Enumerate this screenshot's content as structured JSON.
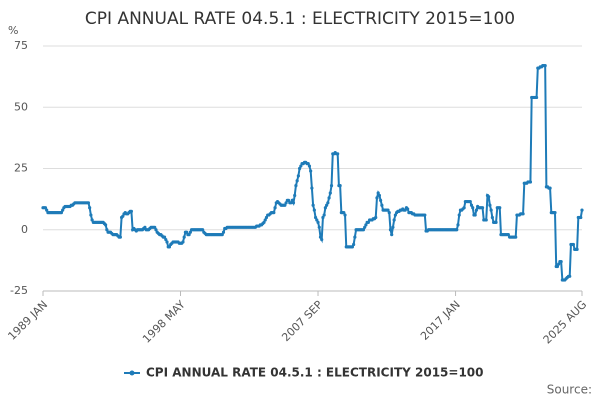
{
  "chart_data": {
    "type": "line",
    "title": "CPI ANNUAL RATE 04.5.1 : ELECTRICITY 2015=100",
    "y_label": "%",
    "source": "Source:",
    "ylim": [
      -25,
      75
    ],
    "yticks": [
      -25,
      0,
      25,
      50,
      75
    ],
    "grid": true,
    "legend": "bottom",
    "categories": [
      "1989 JAN",
      null,
      null,
      null,
      null,
      null,
      null,
      null,
      null,
      null,
      null,
      null,
      null,
      null,
      null,
      null,
      null,
      null,
      null,
      null,
      null,
      null,
      null,
      null,
      null,
      null,
      null,
      null,
      null,
      null,
      null,
      null,
      null,
      null,
      null,
      null,
      null,
      null,
      null,
      null,
      null,
      null,
      null,
      null,
      null,
      null,
      null,
      null,
      null,
      null,
      null,
      null,
      null,
      null,
      null,
      null,
      null,
      null,
      null,
      null,
      null,
      null,
      null,
      null,
      null,
      null,
      null,
      null,
      null,
      null,
      null,
      null,
      null,
      null,
      null,
      null,
      null,
      null,
      null,
      null,
      null,
      null,
      null,
      null,
      null,
      null,
      null,
      null,
      null,
      null,
      null,
      null,
      null,
      null,
      null,
      null,
      null,
      null,
      null,
      null,
      null,
      null,
      null,
      null,
      null,
      null,
      null,
      null,
      null,
      null,
      null,
      null,
      "1998 MAY",
      null,
      null,
      null,
      null,
      null,
      null,
      null,
      null,
      null,
      null,
      null,
      null,
      null,
      null,
      null,
      null,
      null,
      null,
      null,
      null,
      null,
      null,
      null,
      null,
      null,
      null,
      null,
      null,
      null,
      null,
      null,
      null,
      null,
      null,
      null,
      null,
      null,
      null,
      null,
      null,
      null,
      null,
      null,
      null,
      null,
      null,
      null,
      null,
      null,
      null,
      null,
      null,
      null,
      null,
      null,
      null,
      null,
      null,
      null,
      null,
      null,
      null,
      null,
      null,
      null,
      null,
      null,
      null,
      null,
      null,
      null,
      null,
      null,
      null,
      null,
      null,
      null,
      null,
      null,
      null,
      null,
      null,
      null,
      null,
      null,
      null,
      null,
      null,
      null,
      null,
      null,
      null,
      null,
      null,
      null,
      null,
      null,
      null,
      null,
      null,
      null,
      null,
      null,
      null,
      null,
      null,
      null,
      null,
      null,
      null,
      null,
      "2007 SEP",
      null,
      null,
      null,
      null,
      null,
      null,
      null,
      null,
      null,
      null,
      null,
      null,
      null,
      null,
      null,
      null,
      null,
      null,
      null,
      null,
      null,
      null,
      null,
      null,
      null,
      null,
      null,
      null,
      null,
      null,
      null,
      null,
      null,
      null,
      null,
      null,
      null,
      null,
      null,
      null,
      null,
      null,
      null,
      null,
      null,
      null,
      null,
      null,
      null,
      null,
      null,
      null,
      null,
      null,
      null,
      null,
      null,
      null,
      null,
      null,
      null,
      null,
      null,
      null,
      null,
      null,
      null,
      null,
      null,
      null,
      null,
      null,
      null,
      null,
      null,
      null,
      null,
      null,
      null,
      null,
      null,
      null,
      null,
      null,
      null,
      null,
      null,
      null,
      null,
      null,
      null,
      null,
      null,
      null,
      null,
      null,
      null,
      null,
      null,
      null,
      null,
      null,
      null,
      null,
      null,
      null,
      null,
      null,
      null,
      null,
      null,
      "2017 JAN",
      null,
      null,
      null,
      null,
      null,
      null,
      null,
      null,
      null,
      null,
      null,
      null,
      null,
      null,
      null,
      null,
      null,
      null,
      null,
      null,
      null,
      null,
      null,
      null,
      null,
      null,
      null,
      null,
      null,
      null,
      null,
      null,
      null,
      null,
      null,
      null,
      null,
      null,
      null,
      null,
      null,
      null,
      null,
      null,
      null,
      null,
      null,
      null,
      null,
      null,
      null,
      null,
      null,
      null,
      null,
      null,
      null,
      null,
      null,
      null,
      null,
      null,
      null,
      null,
      null,
      null,
      null,
      null,
      null,
      null,
      null,
      null,
      null,
      null,
      null,
      null,
      null,
      null,
      null,
      null,
      null,
      null,
      null,
      null,
      null,
      null,
      null,
      null,
      null,
      null,
      null,
      null,
      null,
      null,
      null,
      null,
      null,
      null,
      null,
      null,
      null,
      null,
      "2025 AUG"
    ],
    "series": [
      {
        "name": "CPI ANNUAL RATE 04.5.1 : ELECTRICITY 2015=100",
        "color": "#1e7bb8",
        "values": [
          9,
          9,
          9,
          8,
          7,
          7,
          7,
          7,
          7,
          7,
          7,
          7,
          7,
          7,
          7,
          7,
          8,
          9,
          9.5,
          9.5,
          9.5,
          9.5,
          9.5,
          10,
          10,
          10.5,
          11,
          11,
          11,
          11,
          11,
          11,
          11,
          11,
          11,
          11,
          11,
          11,
          9,
          6,
          4,
          3,
          3,
          3,
          3,
          3,
          3,
          3,
          3,
          3,
          2.5,
          2,
          0,
          -1,
          -1,
          -1,
          -1.5,
          -2,
          -2,
          -2,
          -2,
          -2.5,
          -3,
          -3,
          5,
          5.5,
          6.5,
          7,
          6.5,
          6.5,
          7,
          7.5,
          7.5,
          0,
          0.5,
          0,
          -0.5,
          0,
          0,
          0,
          0,
          0,
          0.5,
          1,
          0,
          0,
          0,
          0.5,
          1,
          1,
          1,
          1,
          0,
          -1,
          -1.5,
          -2,
          -2,
          -2.5,
          -3,
          -3,
          -4,
          -5,
          -7,
          -7,
          -6,
          -5.5,
          -5,
          -5,
          -5,
          -5,
          -5,
          -5.5,
          -5.5,
          -5.5,
          -5,
          -3,
          -1,
          -1,
          -2,
          -2,
          -1,
          0,
          0,
          0,
          0,
          0,
          0,
          0,
          0,
          0,
          0,
          -1,
          -1.5,
          -2,
          -2,
          -2,
          -2,
          -2,
          -2,
          -2,
          -2,
          -2,
          -2,
          -2,
          -2,
          -2,
          -2,
          -1,
          0.5,
          0.5,
          1,
          1,
          1,
          1,
          1,
          1,
          1,
          1,
          1,
          1,
          1,
          1,
          1,
          1,
          1,
          1,
          1,
          1,
          1,
          1,
          1,
          1,
          1,
          1,
          1.5,
          1.5,
          1.5,
          2,
          2,
          2.5,
          3,
          4,
          5,
          6,
          6,
          6.5,
          7,
          7,
          7,
          9,
          11,
          11.5,
          11,
          10.5,
          10,
          10,
          10,
          10,
          11,
          12,
          12,
          11,
          11,
          12,
          11,
          14,
          18,
          20,
          22,
          25,
          26,
          27,
          27,
          27.5,
          27.5,
          27,
          27,
          26,
          24,
          17,
          10,
          8,
          5,
          4,
          3,
          1,
          -3,
          -4,
          5,
          6,
          9,
          10,
          11,
          13,
          15,
          18,
          31,
          31,
          31.5,
          31,
          31,
          18,
          18,
          7,
          7,
          7,
          6,
          -7,
          -7,
          -7,
          -7,
          -7,
          -7,
          -6,
          -3,
          0,
          0,
          0,
          0,
          0,
          0,
          0,
          1,
          2,
          3,
          3,
          4,
          4,
          4,
          4.5,
          4.5,
          5,
          13,
          15,
          14,
          12,
          10,
          8,
          8,
          8,
          8,
          8,
          7,
          0,
          -2,
          1,
          4,
          6,
          7,
          7.5,
          7.5,
          8,
          8,
          8.5,
          8,
          8,
          9,
          8.5,
          7,
          7,
          7,
          6.5,
          6.5,
          6,
          6,
          6,
          6,
          6,
          6,
          6,
          6,
          6,
          -0.5,
          -0.5,
          0,
          0,
          0,
          0,
          0,
          0,
          0,
          0,
          0,
          0,
          0,
          0,
          0,
          0,
          0,
          0,
          0,
          0,
          0,
          0,
          0,
          0,
          0,
          0,
          2,
          6,
          8,
          8,
          8.5,
          9,
          11.5,
          11.5,
          11.5,
          11.5,
          11.5,
          10,
          9,
          6,
          6,
          8,
          9.5,
          9,
          9,
          9,
          9,
          4,
          4,
          4,
          14,
          13.5,
          10,
          8,
          5,
          3,
          3,
          3,
          9,
          9,
          9,
          -2,
          -2,
          -2,
          -2,
          -2,
          -2,
          -2,
          -3,
          -3,
          -3,
          -3,
          -3,
          -3,
          6,
          6,
          6,
          6.5,
          6.5,
          6.5,
          19,
          19,
          19,
          19.5,
          19.5,
          19.5,
          54,
          54,
          54,
          54,
          54,
          66,
          66,
          66.5,
          66.5,
          67,
          67,
          67,
          17.5,
          17.5,
          17,
          17,
          7,
          7,
          7,
          7,
          -15,
          -15,
          -14,
          -13,
          -13,
          -20.5,
          -20.5,
          -20.5,
          -20,
          -19.5,
          -19,
          -19,
          -6,
          -6,
          -6,
          -8,
          -8,
          -8,
          5,
          5,
          5,
          8
        ]
      }
    ]
  }
}
